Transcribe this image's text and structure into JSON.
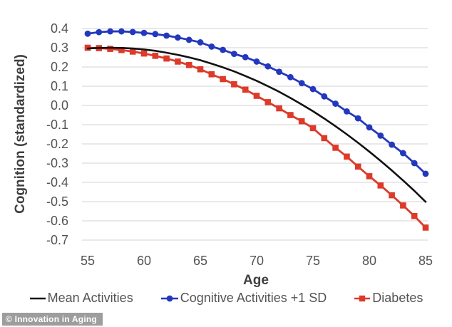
{
  "chart_data": {
    "type": "line",
    "title": "",
    "xlabel": "Age",
    "ylabel": "Cognition (standardized)",
    "xlim": [
      55,
      85
    ],
    "ylim": [
      -0.7,
      0.4
    ],
    "xticks": [
      55,
      60,
      65,
      70,
      75,
      80,
      85
    ],
    "yticks": [
      0.4,
      0.3,
      0.2,
      0.1,
      0.0,
      -0.1,
      -0.2,
      -0.3,
      -0.4,
      -0.5,
      -0.6,
      -0.7
    ],
    "grid": "horizontal",
    "legend_position": "bottom",
    "x": [
      55,
      56,
      57,
      58,
      59,
      60,
      61,
      62,
      63,
      64,
      65,
      66,
      67,
      68,
      69,
      70,
      71,
      72,
      73,
      74,
      75,
      76,
      77,
      78,
      79,
      80,
      81,
      82,
      83,
      84,
      85
    ],
    "series": [
      {
        "name": "Mean Activities",
        "color": "#111111",
        "marker": "none",
        "values": [
          0.296,
          0.299,
          0.3,
          0.299,
          0.296,
          0.291,
          0.284,
          0.274,
          0.263,
          0.25,
          0.235,
          0.217,
          0.198,
          0.177,
          0.153,
          0.128,
          0.1,
          0.071,
          0.039,
          0.005,
          -0.03,
          -0.068,
          -0.108,
          -0.15,
          -0.194,
          -0.24,
          -0.288,
          -0.338,
          -0.39,
          -0.444,
          -0.501
        ]
      },
      {
        "name": "Cognitive Activities +1 SD",
        "color": "#2438bd",
        "marker": "circle",
        "values": [
          0.373,
          0.381,
          0.385,
          0.385,
          0.382,
          0.377,
          0.371,
          0.363,
          0.353,
          0.341,
          0.328,
          0.306,
          0.289,
          0.268,
          0.251,
          0.228,
          0.203,
          0.175,
          0.147,
          0.116,
          0.085,
          0.047,
          0.009,
          -0.031,
          -0.067,
          -0.114,
          -0.157,
          -0.204,
          -0.248,
          -0.3,
          -0.355
        ]
      },
      {
        "name": "Diabetes",
        "color": "#dd3a2a",
        "marker": "square",
        "values": [
          0.3,
          0.298,
          0.294,
          0.288,
          0.28,
          0.27,
          0.258,
          0.244,
          0.228,
          0.21,
          0.188,
          0.162,
          0.137,
          0.11,
          0.082,
          0.05,
          0.017,
          -0.015,
          -0.05,
          -0.082,
          -0.118,
          -0.17,
          -0.22,
          -0.266,
          -0.318,
          -0.368,
          -0.416,
          -0.467,
          -0.52,
          -0.575,
          -0.635
        ]
      }
    ]
  },
  "legend": {
    "items": [
      "Mean Activities",
      "Cognitive Activities +1 SD",
      "Diabetes"
    ]
  },
  "watermark": {
    "text": "© Innovation in Aging"
  },
  "palette": {
    "gridline": "#e2e2e2",
    "axis_text": "#545454",
    "title_text": "#3f3f3f",
    "watermark_bg": "#9d9d9d",
    "background": "#ffffff"
  }
}
